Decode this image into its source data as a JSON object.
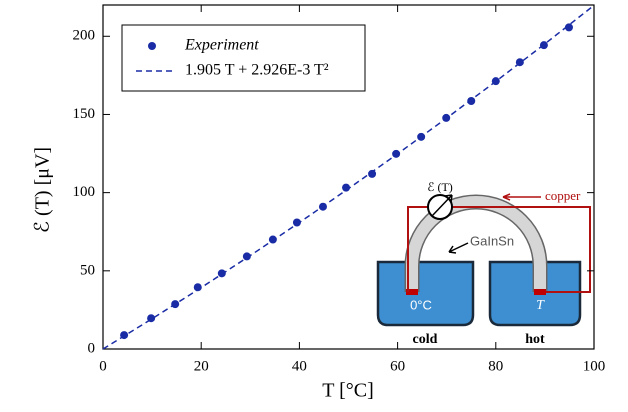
{
  "chart_data": {
    "type": "scatter",
    "xlabel": "T [°C]",
    "ylabel": "ℰ (T)  [μV]",
    "xlim": [
      0,
      100
    ],
    "xticks": [
      0,
      20,
      40,
      60,
      80,
      100
    ],
    "ylim": [
      0,
      220
    ],
    "yticks": [
      0,
      50,
      100,
      150,
      200
    ],
    "legend": "upper left",
    "series": [
      {
        "name": "Experiment",
        "type": "scatter",
        "color": "#1a2ca5",
        "x": [
          4.3,
          9.8,
          14.7,
          19.3,
          24.2,
          29.3,
          34.6,
          39.5,
          44.8,
          49.5,
          54.8,
          59.7,
          64.8,
          69.9,
          75.0,
          80.0,
          84.9,
          89.8,
          94.9
        ],
        "values": [
          8.9,
          19.7,
          28.7,
          39.5,
          48.4,
          59.2,
          70.0,
          80.9,
          91.0,
          103.2,
          112.0,
          124.8,
          135.7,
          147.8,
          158.6,
          171.3,
          183.4,
          194.3,
          205.7
        ]
      },
      {
        "name": "1.905 T + 2.926E-3 T²",
        "type": "line",
        "color": "#1a2ca5",
        "x": [
          0,
          10,
          20,
          30,
          40,
          50,
          60,
          70,
          80,
          90,
          100
        ],
        "values": [
          0,
          19.34,
          39.27,
          59.78,
          80.88,
          102.57,
          124.83,
          147.69,
          171.13,
          195.15,
          219.76
        ]
      }
    ],
    "annotations": [
      "ℰ (T)",
      "copper",
      "GaInSn",
      "0°C",
      "T",
      "cold",
      "hot"
    ]
  }
}
